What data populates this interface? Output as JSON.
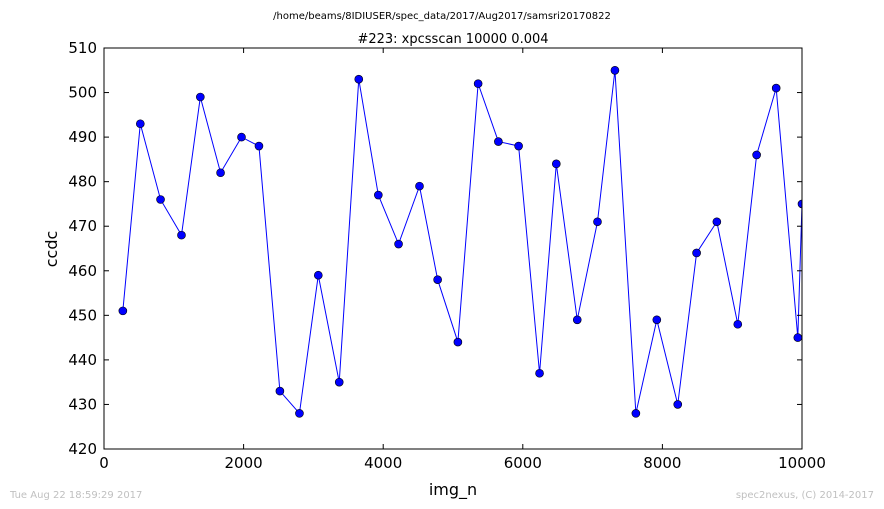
{
  "suptitle": "/home/beams/8IDIUSER/spec_data/2017/Aug2017/samsri20170822",
  "footer": {
    "timestamp": "Tue Aug 22 18:59:29 2017",
    "credit": "spec2nexus, (C) 2014-2017"
  },
  "colors": {
    "series": "#0000ff",
    "axes": "#000000"
  },
  "chart_data": {
    "type": "line",
    "title": "#223: xpcsscan 10000 0.004",
    "xlabel": "img_n",
    "ylabel": "ccdc",
    "xlim": [
      0,
      10000
    ],
    "ylim": [
      420,
      510
    ],
    "xticks": [
      0,
      2000,
      4000,
      6000,
      8000,
      10000
    ],
    "yticks": [
      420,
      430,
      440,
      450,
      460,
      470,
      480,
      490,
      500,
      510
    ],
    "grid": false,
    "marker": "circle",
    "x": [
      270,
      520,
      810,
      1110,
      1380,
      1670,
      1970,
      2220,
      2520,
      2800,
      3070,
      3370,
      3650,
      3930,
      4220,
      4520,
      4780,
      5070,
      5360,
      5650,
      5940,
      6240,
      6480,
      6780,
      7070,
      7320,
      7620,
      7920,
      8220,
      8490,
      8780,
      9080,
      9350,
      9630,
      9940,
      10000
    ],
    "y": [
      451,
      493,
      476,
      468,
      499,
      482,
      490,
      488,
      433,
      428,
      459,
      435,
      503,
      477,
      466,
      479,
      458,
      444,
      502,
      489,
      488,
      437,
      484,
      449,
      471,
      505,
      428,
      449,
      430,
      464,
      471,
      448,
      486,
      501,
      445,
      475
    ]
  }
}
